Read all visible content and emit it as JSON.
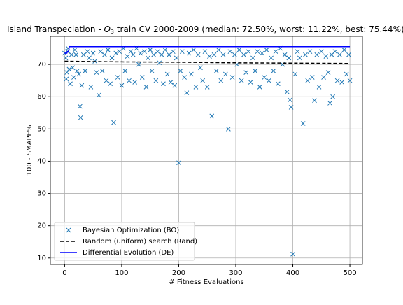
{
  "chart_data": {
    "type": "scatter",
    "title": {
      "before": "Island Transpeciation - ",
      "italic": "O",
      "subscript": "3",
      "after": " train CV 2000-2009 (median: 72.50%, worst: 11.22%, best: 75.44%)"
    },
    "xlabel": "# Fitness Evaluations",
    "ylabel": "100 - SMAPE%",
    "xlim": [
      -25,
      522
    ],
    "ylim": [
      8,
      78.7
    ],
    "xticks": [
      0,
      100,
      200,
      300,
      400,
      500
    ],
    "yticks": [
      10,
      20,
      30,
      40,
      50,
      60,
      70
    ],
    "grid": true,
    "legend": "lower left",
    "series": [
      {
        "name": "Bayesian Optimization (BO)",
        "color": "#1f77b4",
        "kind": "marker",
        "x": [
          0,
          2,
          3,
          4,
          5,
          6,
          8,
          10,
          12,
          14,
          16,
          18,
          20,
          22,
          25,
          27,
          28,
          30,
          33,
          36,
          40,
          43,
          46,
          50,
          53,
          56,
          60,
          63,
          66,
          70,
          73,
          76,
          80,
          83,
          86,
          90,
          93,
          96,
          100,
          103,
          106,
          110,
          113,
          116,
          120,
          123,
          126,
          130,
          133,
          136,
          140,
          143,
          146,
          150,
          153,
          156,
          160,
          163,
          166,
          170,
          173,
          176,
          180,
          183,
          186,
          190,
          193,
          196,
          200,
          203,
          206,
          210,
          214,
          218,
          222,
          226,
          230,
          234,
          238,
          242,
          246,
          250,
          254,
          258,
          262,
          266,
          270,
          274,
          278,
          282,
          287,
          290,
          294,
          298,
          302,
          306,
          310,
          314,
          318,
          322,
          326,
          330,
          334,
          338,
          342,
          346,
          350,
          354,
          358,
          362,
          366,
          370,
          374,
          378,
          382,
          386,
          390,
          393,
          395,
          397,
          400,
          404,
          408,
          412,
          418,
          422,
          426,
          430,
          434,
          438,
          442,
          446,
          450,
          454,
          458,
          462,
          465,
          468,
          470,
          474,
          478,
          482,
          486,
          490,
          494,
          498,
          500
        ],
        "values": [
          73.5,
          72,
          65.5,
          67.5,
          74,
          75,
          68.5,
          64,
          73,
          69,
          66,
          74.5,
          73,
          68,
          67,
          57,
          53.5,
          63.5,
          73,
          68,
          74,
          72,
          63,
          73.5,
          71,
          67.5,
          60.5,
          74,
          68,
          73,
          65,
          74.5,
          64,
          72,
          52,
          73.5,
          66,
          74,
          63.5,
          75,
          68,
          72.5,
          65,
          74,
          73,
          64.5,
          75,
          70,
          73.5,
          66,
          74,
          63,
          72,
          74.5,
          68,
          73,
          65,
          74,
          70.5,
          73,
          64,
          74.5,
          67,
          73,
          64.5,
          74,
          63.5,
          72,
          39.5,
          68,
          74,
          66,
          61.2,
          73.5,
          67,
          74.5,
          63,
          73,
          69,
          65,
          74,
          63,
          72.5,
          54,
          73,
          68,
          74.5,
          65,
          73,
          67,
          50,
          74,
          66,
          73,
          70,
          74.5,
          65,
          73,
          67.5,
          74,
          64.5,
          72,
          68,
          74,
          63,
          73.5,
          66,
          74.5,
          65,
          72,
          68,
          74,
          64,
          75,
          70,
          73,
          61.5,
          72,
          59,
          56.7,
          11.2,
          67,
          74,
          72,
          51.7,
          73,
          65,
          74,
          66,
          58.8,
          73,
          63,
          74,
          66,
          72.5,
          67.5,
          58,
          73,
          60,
          74,
          65,
          73,
          64.5,
          74.5,
          67,
          73,
          65
        ]
      },
      {
        "name": "Random (uniform) search (Rand)",
        "color": "#000000",
        "kind": "dashed",
        "x": [
          0,
          100,
          200,
          300,
          400,
          500
        ],
        "values": [
          71,
          70.8,
          70.7,
          70.5,
          70.4,
          70.3
        ]
      },
      {
        "name": "Differential Evolution (DE)",
        "color": "#0000ff",
        "kind": "solid",
        "x": [
          0,
          4,
          5,
          7,
          8,
          500
        ],
        "values": [
          73.5,
          73.5,
          74,
          74,
          75.5,
          75.5
        ]
      }
    ]
  }
}
